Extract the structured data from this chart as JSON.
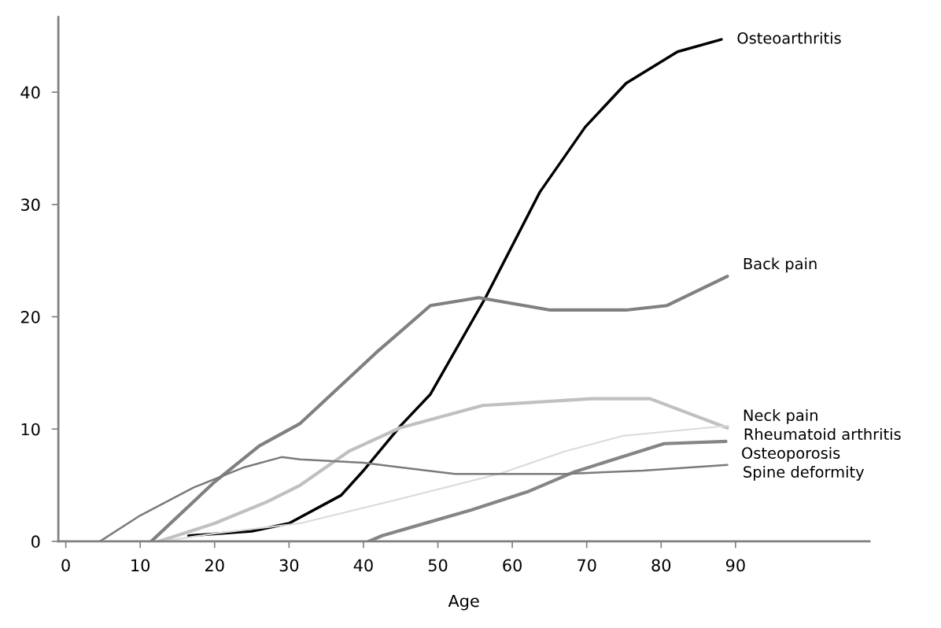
{
  "chart_data": {
    "type": "line",
    "xlabel": "Age",
    "xlim": [
      -1,
      108
    ],
    "ylim": [
      0,
      46.7
    ],
    "xticks": [
      0,
      10,
      20,
      30,
      40,
      50,
      60,
      70,
      80,
      90
    ],
    "yticks": [
      0,
      10,
      20,
      30,
      40
    ],
    "grid": false,
    "legend": false,
    "marker": "none",
    "line_style": "solid",
    "series": [
      {
        "name": "Osteoarthritis",
        "color": "#000000",
        "x": [
          16.5,
          25,
          30,
          37,
          40,
          45,
          49,
          56.4,
          63.7,
          69.8,
          75.3,
          82.2,
          88.1
        ],
        "values": [
          0.5,
          0.9,
          1.6,
          4.1,
          6.3,
          10.3,
          13.1,
          21.7,
          31.1,
          36.9,
          40.8,
          43.6,
          44.7
        ]
      },
      {
        "name": "Back pain",
        "color": "#808080",
        "x": [
          11.5,
          20,
          26,
          31.5,
          41.7,
          49,
          55.5,
          65.1,
          75.3,
          80.8,
          88.9
        ],
        "values": [
          0,
          5.3,
          8.5,
          10.5,
          16.8,
          21.0,
          21.7,
          20.6,
          20.6,
          21.0,
          23.6
        ]
      },
      {
        "name": "Neck pain",
        "color": "#c0c0c0",
        "x": [
          12.5,
          20,
          27,
          31.5,
          38,
          44.9,
          56,
          70.7,
          78.5,
          88.9
        ],
        "values": [
          0,
          1.6,
          3.5,
          5.0,
          8.0,
          10.1,
          12.1,
          12.7,
          12.7,
          10.1
        ]
      },
      {
        "name": "Rheumatoid arthritis",
        "color": "#dadada",
        "x": [
          13,
          20,
          31.5,
          45,
          58.2,
          67,
          74.9,
          89
        ],
        "values": [
          0,
          0.7,
          1.6,
          3.8,
          6.0,
          8.0,
          9.4,
          10.3
        ]
      },
      {
        "name": "Osteoporosis",
        "color": "#858585",
        "x": [
          40.7,
          42.5,
          54.5,
          62,
          68.4,
          80.4,
          88.7
        ],
        "values": [
          0,
          0.5,
          2.8,
          4.4,
          6.2,
          8.7,
          8.9
        ]
      },
      {
        "name": "Spine deformity",
        "color": "#7a7a7a",
        "x": [
          4.6,
          10,
          17.2,
          24,
          29,
          31.5,
          40,
          52.3,
          67,
          77.6,
          88.9
        ],
        "values": [
          0,
          2.3,
          4.8,
          6.6,
          7.5,
          7.3,
          7.0,
          6.0,
          6.0,
          6.3,
          6.8
        ]
      }
    ]
  }
}
